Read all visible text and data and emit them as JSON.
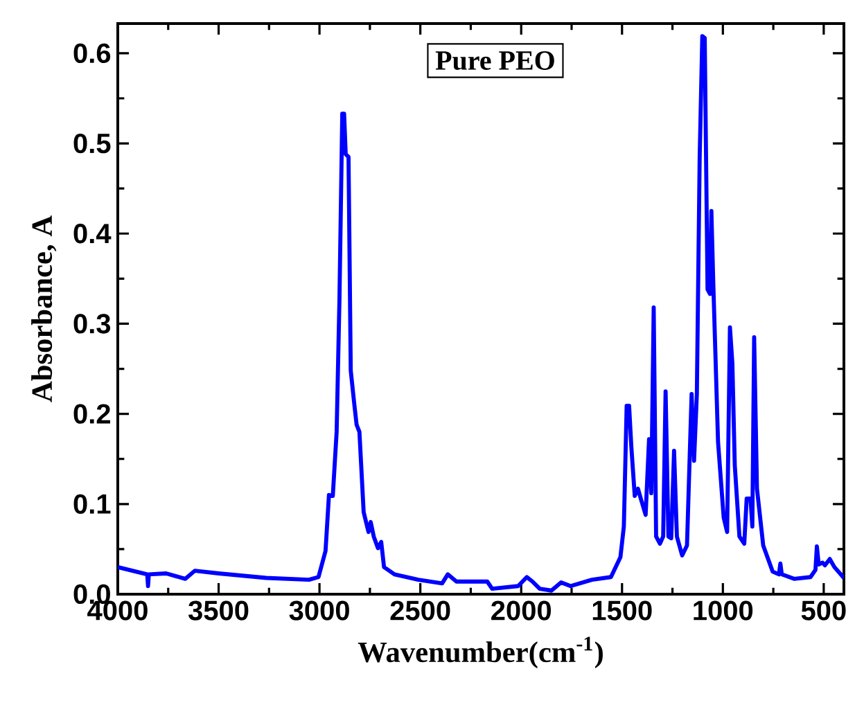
{
  "chart_data": {
    "type": "line",
    "xlabel": "Wavenumber(cm$^{-1}$)",
    "ylabel": "Absorbance, A",
    "annotations": [
      "Pure PEO"
    ],
    "color": "#0000ff",
    "x": [
      4000,
      3854,
      3850,
      3846,
      3760,
      3665,
      3618,
      3500,
      3264,
      3052,
      3005,
      2970,
      2953,
      2934,
      2915,
      2901,
      2887,
      2878,
      2870,
      2856,
      2845,
      2828,
      2816,
      2802,
      2781,
      2757,
      2746,
      2731,
      2710,
      2694,
      2680,
      2628,
      2510,
      2392,
      2364,
      2321,
      2227,
      2168,
      2144,
      2015,
      1972,
      1944,
      1908,
      1850,
      1802,
      1755,
      1649,
      1555,
      1508,
      1491,
      1477,
      1465,
      1454,
      1437,
      1421,
      1407,
      1383,
      1366,
      1355,
      1343,
      1331,
      1312,
      1296,
      1284,
      1270,
      1256,
      1242,
      1228,
      1202,
      1178,
      1155,
      1143,
      1129,
      1115,
      1102,
      1090,
      1076,
      1064,
      1057,
      1048,
      1024,
      996,
      979,
      965,
      953,
      941,
      918,
      894,
      882,
      863,
      854,
      845,
      831,
      800,
      753,
      722,
      715,
      708,
      647,
      565,
      541,
      534,
      525,
      506,
      494,
      470,
      447,
      400
    ],
    "values": [
      0.03,
      0.022,
      0.009,
      0.022,
      0.023,
      0.017,
      0.026,
      0.023,
      0.018,
      0.016,
      0.019,
      0.048,
      0.11,
      0.109,
      0.18,
      0.327,
      0.533,
      0.533,
      0.488,
      0.485,
      0.248,
      0.212,
      0.188,
      0.18,
      0.091,
      0.069,
      0.08,
      0.064,
      0.051,
      0.058,
      0.03,
      0.022,
      0.016,
      0.012,
      0.022,
      0.014,
      0.014,
      0.014,
      0.006,
      0.009,
      0.019,
      0.014,
      0.006,
      0.004,
      0.013,
      0.009,
      0.016,
      0.019,
      0.041,
      0.075,
      0.209,
      0.209,
      0.164,
      0.109,
      0.117,
      0.106,
      0.088,
      0.172,
      0.112,
      0.318,
      0.064,
      0.056,
      0.064,
      0.225,
      0.064,
      0.062,
      0.159,
      0.064,
      0.043,
      0.054,
      0.222,
      0.148,
      0.222,
      0.485,
      0.619,
      0.617,
      0.338,
      0.333,
      0.425,
      0.348,
      0.169,
      0.085,
      0.069,
      0.296,
      0.256,
      0.143,
      0.064,
      0.056,
      0.106,
      0.106,
      0.075,
      0.285,
      0.117,
      0.054,
      0.025,
      0.022,
      0.034,
      0.022,
      0.017,
      0.019,
      0.027,
      0.053,
      0.033,
      0.035,
      0.032,
      0.039,
      0.03,
      0.018
    ],
    "xlim": [
      4000,
      400
    ],
    "xticks": [
      4000,
      3500,
      3000,
      2500,
      2000,
      1500,
      1000,
      500
    ],
    "ylim": [
      0,
      0.633
    ],
    "yticks": [
      {
        "value": 0,
        "label": "0.0"
      },
      0.1,
      0.2,
      0.3,
      0.4,
      0.5,
      0.6
    ]
  }
}
